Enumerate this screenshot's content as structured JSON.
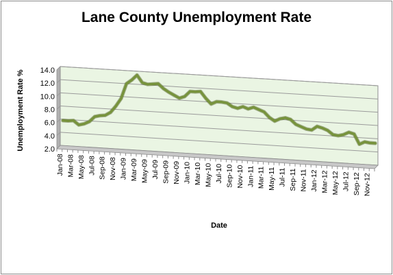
{
  "chart_data": {
    "type": "line",
    "title": "Lane County Unemployment Rate",
    "xlabel": "Date",
    "ylabel": "Unemployment Rate %",
    "ylim": [
      2.0,
      14.0
    ],
    "yticks": [
      2.0,
      4.0,
      6.0,
      8.0,
      10.0,
      12.0,
      14.0
    ],
    "grid": true,
    "legend": "none",
    "line_color": "#77933c",
    "plot_fill": "#eaf5e3",
    "categories": [
      "Jan-08",
      "Feb-08",
      "Mar-08",
      "Apr-08",
      "May-08",
      "Jun-08",
      "Jul-08",
      "Aug-08",
      "Sep-08",
      "Oct-08",
      "Nov-08",
      "Dec-08",
      "Jan-09",
      "Feb-09",
      "Mar-09",
      "Apr-09",
      "May-09",
      "Jun-09",
      "Jul-09",
      "Aug-09",
      "Sep-09",
      "Oct-09",
      "Nov-09",
      "Dec-09",
      "Jan-10",
      "Feb-10",
      "Mar-10",
      "Apr-10",
      "May-10",
      "Jun-10",
      "Jul-10",
      "Aug-10",
      "Sep-10",
      "Oct-10",
      "Nov-10",
      "Dec-10",
      "Jan-11",
      "Feb-11",
      "Mar-11",
      "Apr-11",
      "May-11",
      "Jun-11",
      "Jul-11",
      "Aug-11",
      "Sep-11",
      "Oct-11",
      "Nov-11",
      "Dec-11",
      "Jan-12",
      "Feb-12",
      "Mar-12",
      "Apr-12",
      "May-12",
      "Jun-12",
      "Jul-12",
      "Aug-12",
      "Sep-12",
      "Oct-12",
      "Nov-12",
      "Dec-12"
    ],
    "tick_labels": [
      "Jan-08",
      "Mar-08",
      "May-08",
      "Jul-08",
      "Sep-08",
      "Nov-08",
      "Jan-09",
      "Mar-09",
      "May-09",
      "Jul-09",
      "Sep-09",
      "Nov-09",
      "Jan-10",
      "Mar-10",
      "May-10",
      "Jul-10",
      "Sep-10",
      "Nov-10",
      "Jan-11",
      "Mar-11",
      "May-11",
      "Jul-11",
      "Sep-11",
      "Nov-11",
      "Jan-12",
      "Mar-12",
      "May-12",
      "Jul-12",
      "Sep-12",
      "Nov-12"
    ],
    "values": [
      5.8,
      5.8,
      5.9,
      5.3,
      5.5,
      5.9,
      6.7,
      6.9,
      7.0,
      7.5,
      8.5,
      9.7,
      12.0,
      12.6,
      13.4,
      12.3,
      12.1,
      12.2,
      12.3,
      11.6,
      11.1,
      10.7,
      10.3,
      10.6,
      11.4,
      11.4,
      11.5,
      10.5,
      9.7,
      10.1,
      10.1,
      10.0,
      9.5,
      9.3,
      9.6,
      9.3,
      9.6,
      9.3,
      9.0,
      8.2,
      7.7,
      8.1,
      8.3,
      8.1,
      7.4,
      7.1,
      6.8,
      6.7,
      7.3,
      7.1,
      6.8,
      6.2,
      6.1,
      6.3,
      6.7,
      6.5,
      5.0,
      5.4,
      5.3,
      5.3
    ]
  }
}
